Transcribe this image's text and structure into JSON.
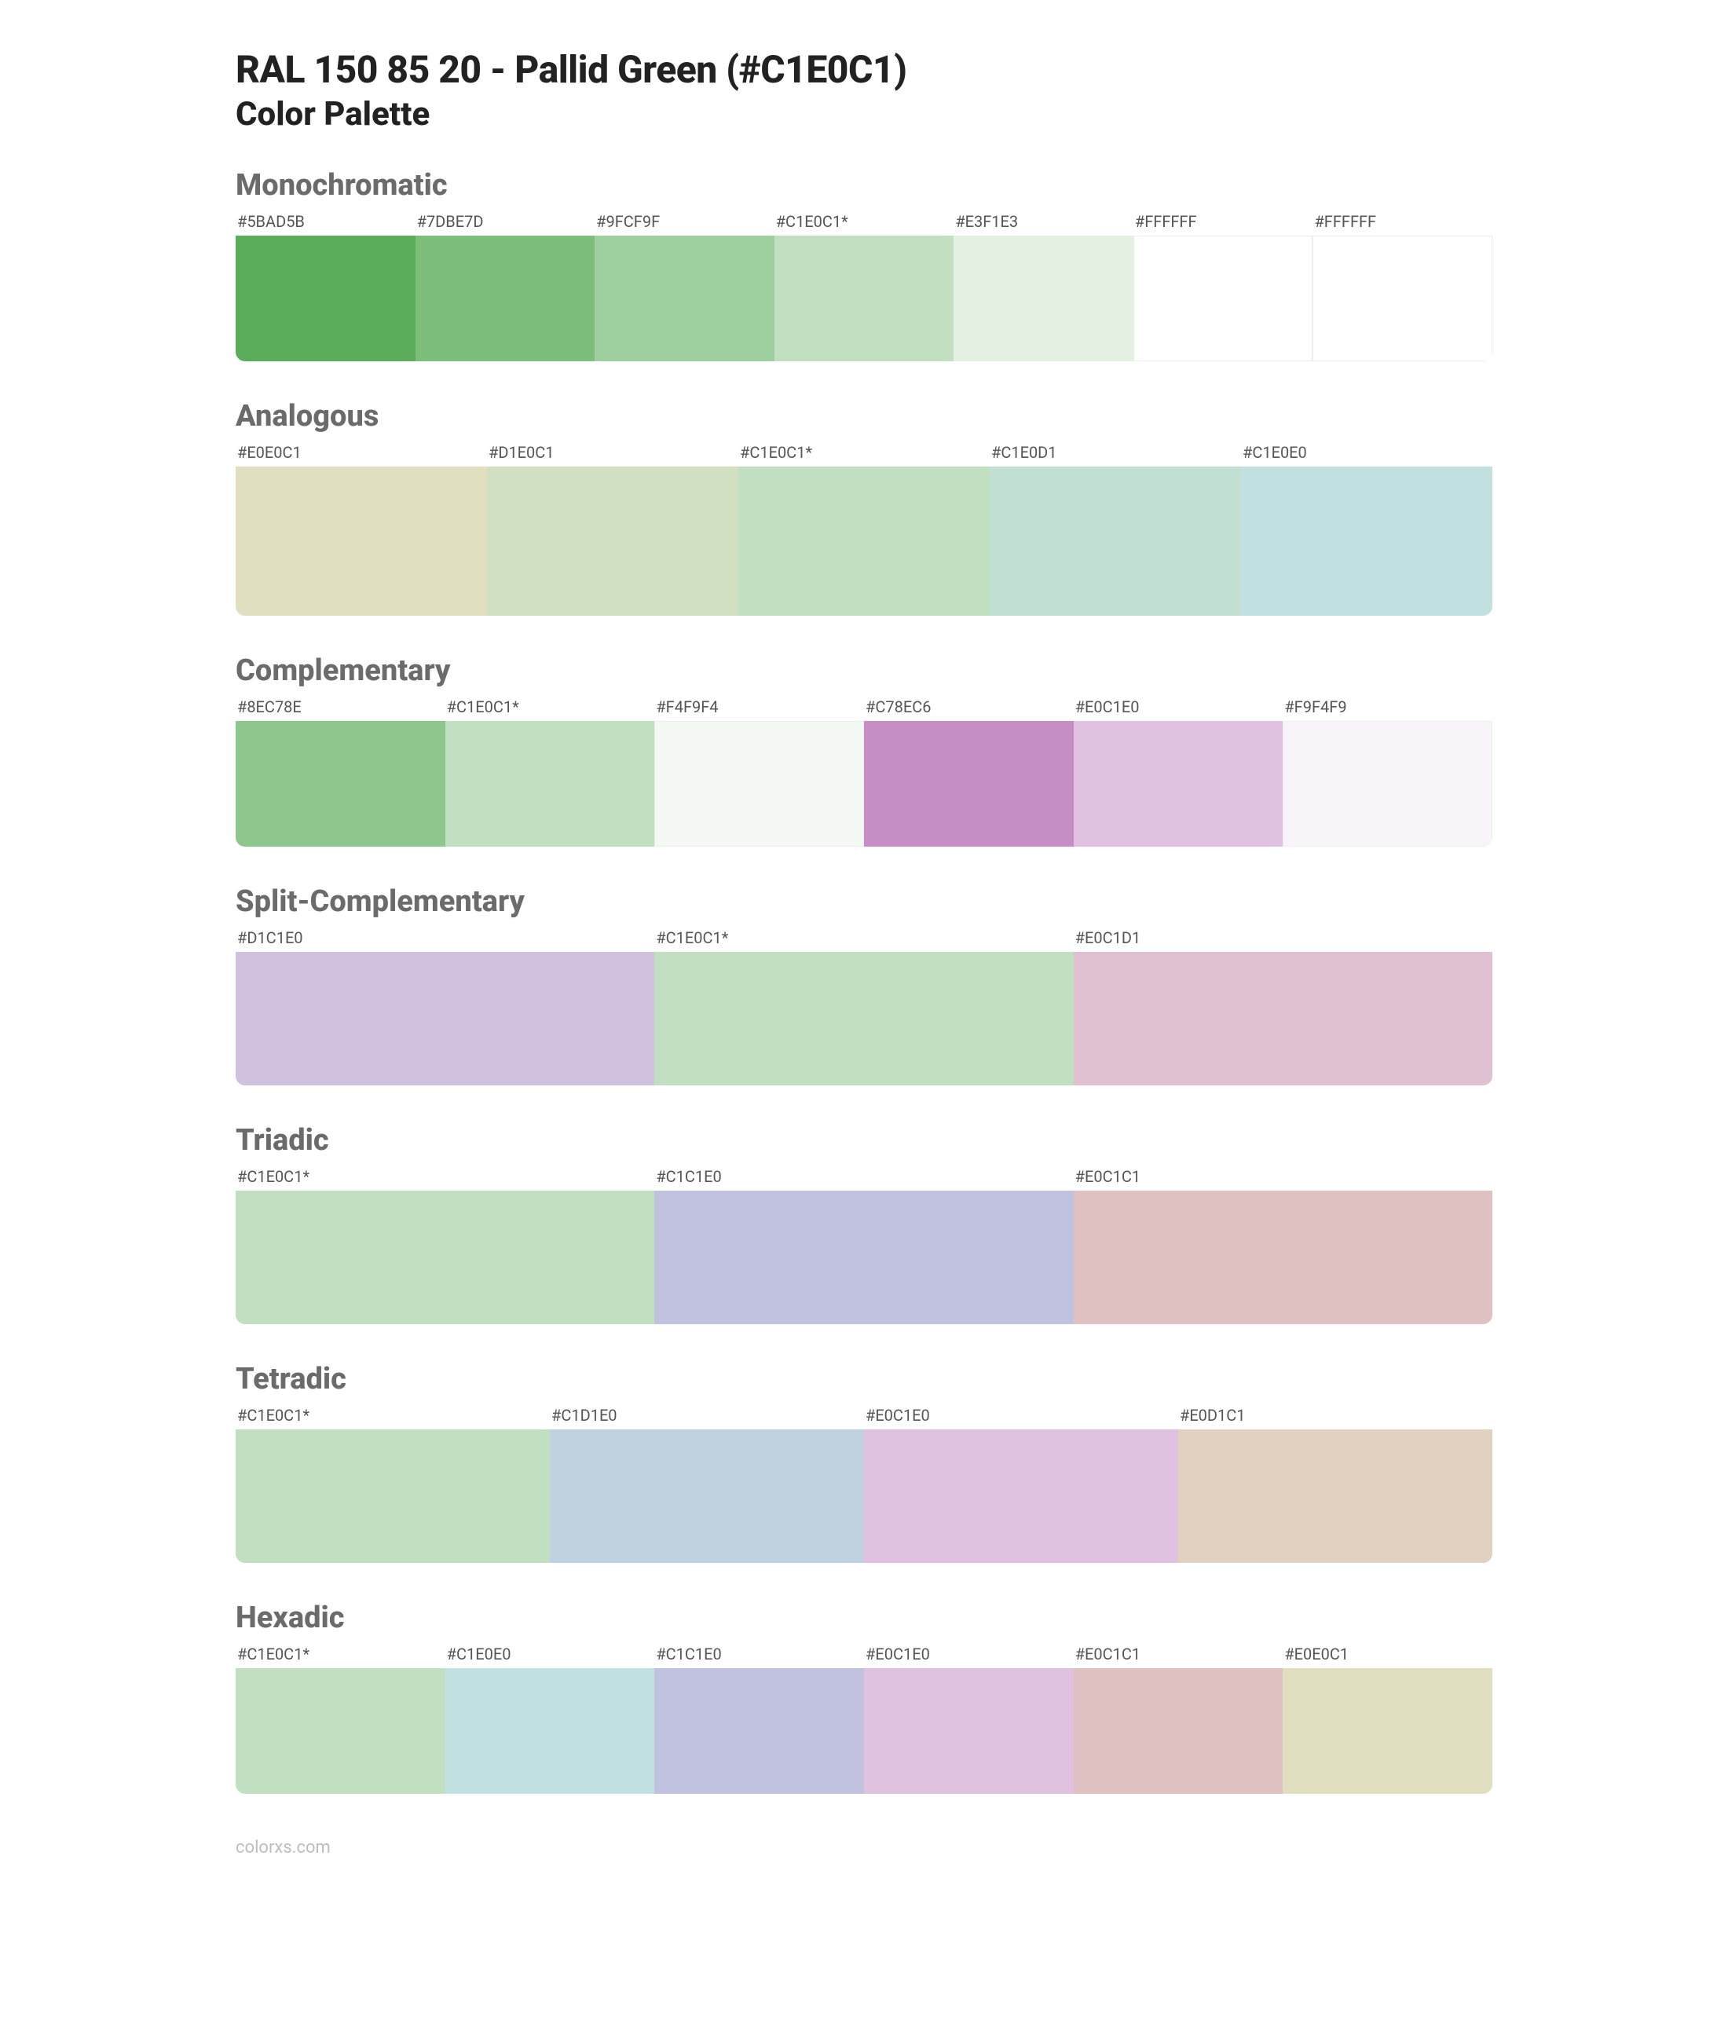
{
  "header": {
    "title": "RAL 150 85 20 - Pallid Green (#C1E0C1)",
    "subtitle": "Color Palette"
  },
  "sections": [
    {
      "title": "Monochromatic",
      "swatch_height": 160,
      "swatches": [
        {
          "label": "#5BAD5B",
          "color": "#5BAD5B"
        },
        {
          "label": "#7DBE7D",
          "color": "#7DBE7D"
        },
        {
          "label": "#9FCF9F",
          "color": "#9FCF9F"
        },
        {
          "label": "#C1E0C1*",
          "color": "#C1E0C1"
        },
        {
          "label": "#E3F1E3",
          "color": "#E3F1E3"
        },
        {
          "label": "#FFFFFF",
          "color": "#FFFFFF",
          "border": true
        },
        {
          "label": "#FFFFFF",
          "color": "#FFFFFF",
          "border": true
        }
      ]
    },
    {
      "title": "Analogous",
      "swatch_height": 190,
      "swatches": [
        {
          "label": "#E0E0C1",
          "color": "#E0E0C1"
        },
        {
          "label": "#D1E0C1",
          "color": "#D1E0C1"
        },
        {
          "label": "#C1E0C1*",
          "color": "#C1E0C1"
        },
        {
          "label": "#C1E0D1",
          "color": "#C1E0D1"
        },
        {
          "label": "#C1E0E0",
          "color": "#C1E0E0"
        }
      ]
    },
    {
      "title": "Complementary",
      "swatch_height": 160,
      "swatches": [
        {
          "label": "#8EC78E",
          "color": "#8EC78E"
        },
        {
          "label": "#C1E0C1*",
          "color": "#C1E0C1"
        },
        {
          "label": "#F4F9F4",
          "color": "#F4F9F4",
          "border": true
        },
        {
          "label": "#C78EC6",
          "color": "#C78EC6"
        },
        {
          "label": "#E0C1E0",
          "color": "#E0C1E0"
        },
        {
          "label": "#F9F4F9",
          "color": "#F9F4F9",
          "border": true
        }
      ]
    },
    {
      "title": "Split-Complementary",
      "swatch_height": 170,
      "swatches": [
        {
          "label": "#D1C1E0",
          "color": "#D1C1E0"
        },
        {
          "label": "#C1E0C1*",
          "color": "#C1E0C1"
        },
        {
          "label": "#E0C1D1",
          "color": "#E0C1D1"
        }
      ]
    },
    {
      "title": "Triadic",
      "swatch_height": 170,
      "swatches": [
        {
          "label": "#C1E0C1*",
          "color": "#C1E0C1"
        },
        {
          "label": "#C1C1E0",
          "color": "#C1C1E0"
        },
        {
          "label": "#E0C1C1",
          "color": "#E0C1C1"
        }
      ]
    },
    {
      "title": "Tetradic",
      "swatch_height": 170,
      "swatches": [
        {
          "label": "#C1E0C1*",
          "color": "#C1E0C1"
        },
        {
          "label": "#C1D1E0",
          "color": "#C1D1E0"
        },
        {
          "label": "#E0C1E0",
          "color": "#E0C1E0"
        },
        {
          "label": "#E0D1C1",
          "color": "#E0D1C1"
        }
      ]
    },
    {
      "title": "Hexadic",
      "swatch_height": 160,
      "swatches": [
        {
          "label": "#C1E0C1*",
          "color": "#C1E0C1"
        },
        {
          "label": "#C1E0E0",
          "color": "#C1E0E0"
        },
        {
          "label": "#C1C1E0",
          "color": "#C1C1E0"
        },
        {
          "label": "#E0C1E0",
          "color": "#E0C1E0"
        },
        {
          "label": "#E0C1C1",
          "color": "#E0C1C1"
        },
        {
          "label": "#E0E0C1",
          "color": "#E0E0C1"
        }
      ]
    }
  ],
  "footer": "colorxs.com"
}
